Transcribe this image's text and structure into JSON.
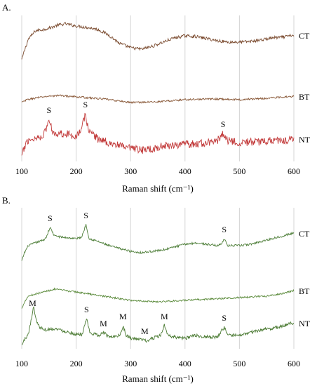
{
  "chart_data": [
    {
      "panel_label": "A.",
      "type": "line",
      "xlabel": "Raman shift (cm⁻¹)",
      "xlim": [
        100,
        600
      ],
      "x_ticks": [
        100,
        200,
        300,
        400,
        500,
        600
      ],
      "grid": "vertical",
      "y_axis": "none (stacked offset spectra)",
      "series": [
        {
          "name": "CT",
          "color": "#7a4a2e",
          "noise": 2.2,
          "points": [
            [
              100,
              -15
            ],
            [
              105,
              -2
            ],
            [
              112,
              14
            ],
            [
              125,
              26
            ],
            [
              140,
              28
            ],
            [
              155,
              31
            ],
            [
              165,
              34
            ],
            [
              180,
              36
            ],
            [
              200,
              33
            ],
            [
              220,
              31
            ],
            [
              240,
              28
            ],
            [
              260,
              20
            ],
            [
              280,
              8
            ],
            [
              300,
              2
            ],
            [
              320,
              0
            ],
            [
              340,
              4
            ],
            [
              360,
              10
            ],
            [
              380,
              16
            ],
            [
              400,
              19
            ],
            [
              420,
              18
            ],
            [
              440,
              15
            ],
            [
              460,
              12
            ],
            [
              480,
              10
            ],
            [
              500,
              10
            ],
            [
              520,
              11
            ],
            [
              540,
              13
            ],
            [
              560,
              16
            ],
            [
              580,
              17
            ],
            [
              600,
              20
            ]
          ]
        },
        {
          "name": "BT",
          "color": "#8a5a3a",
          "noise": 1.3,
          "points": [
            [
              100,
              0
            ],
            [
              110,
              4
            ],
            [
              130,
              7
            ],
            [
              150,
              9
            ],
            [
              170,
              10
            ],
            [
              200,
              8
            ],
            [
              250,
              5
            ],
            [
              300,
              0
            ],
            [
              350,
              1
            ],
            [
              400,
              4
            ],
            [
              450,
              5
            ],
            [
              500,
              4
            ],
            [
              550,
              6
            ],
            [
              600,
              9
            ]
          ]
        },
        {
          "name": "NT",
          "color": "#c23a3a",
          "noise": 5.5,
          "points": [
            [
              100,
              -15
            ],
            [
              105,
              -2
            ],
            [
              110,
              8
            ],
            [
              120,
              10
            ],
            [
              130,
              12
            ],
            [
              140,
              16
            ],
            [
              145,
              24
            ],
            [
              150,
              38
            ],
            [
              155,
              24
            ],
            [
              160,
              18
            ],
            [
              180,
              18
            ],
            [
              200,
              14
            ],
            [
              210,
              24
            ],
            [
              217,
              46
            ],
            [
              222,
              24
            ],
            [
              240,
              10
            ],
            [
              260,
              5
            ],
            [
              280,
              0
            ],
            [
              300,
              -4
            ],
            [
              320,
              -6
            ],
            [
              340,
              -4
            ],
            [
              360,
              0
            ],
            [
              380,
              2
            ],
            [
              400,
              2
            ],
            [
              420,
              3
            ],
            [
              440,
              4
            ],
            [
              460,
              8
            ],
            [
              470,
              18
            ],
            [
              478,
              8
            ],
            [
              500,
              5
            ],
            [
              540,
              6
            ],
            [
              560,
              8
            ],
            [
              580,
              8
            ],
            [
              600,
              10
            ]
          ]
        }
      ],
      "annotations": [
        {
          "text": "S",
          "x": 150,
          "series": "NT"
        },
        {
          "text": "S",
          "x": 217,
          "series": "NT"
        },
        {
          "text": "S",
          "x": 470,
          "series": "NT"
        }
      ]
    },
    {
      "panel_label": "B.",
      "type": "line",
      "xlabel": "Raman shift (cm⁻¹)",
      "xlim": [
        100,
        600
      ],
      "x_ticks": [
        100,
        200,
        300,
        400,
        500,
        600
      ],
      "grid": "vertical",
      "y_axis": "none (stacked offset spectra)",
      "series": [
        {
          "name": "CT",
          "color": "#4f7f3a",
          "noise": 1.5,
          "points": [
            [
              100,
              -14
            ],
            [
              105,
              -2
            ],
            [
              112,
              8
            ],
            [
              125,
              12
            ],
            [
              140,
              16
            ],
            [
              145,
              20
            ],
            [
              152,
              34
            ],
            [
              160,
              22
            ],
            [
              175,
              20
            ],
            [
              200,
              18
            ],
            [
              210,
              20
            ],
            [
              218,
              38
            ],
            [
              224,
              18
            ],
            [
              240,
              14
            ],
            [
              260,
              8
            ],
            [
              280,
              4
            ],
            [
              300,
              0
            ],
            [
              320,
              -2
            ],
            [
              340,
              0
            ],
            [
              360,
              2
            ],
            [
              380,
              6
            ],
            [
              400,
              10
            ],
            [
              420,
              12
            ],
            [
              440,
              10
            ],
            [
              460,
              8
            ],
            [
              466,
              10
            ],
            [
              472,
              18
            ],
            [
              478,
              8
            ],
            [
              500,
              8
            ],
            [
              520,
              10
            ],
            [
              540,
              14
            ],
            [
              560,
              18
            ],
            [
              580,
              22
            ],
            [
              600,
              26
            ]
          ]
        },
        {
          "name": "BT",
          "color": "#5a8a3a",
          "noise": 1.2,
          "points": [
            [
              100,
              -10
            ],
            [
              105,
              0
            ],
            [
              112,
              8
            ],
            [
              120,
              10
            ],
            [
              140,
              14
            ],
            [
              160,
              18
            ],
            [
              180,
              16
            ],
            [
              200,
              14
            ],
            [
              250,
              8
            ],
            [
              300,
              2
            ],
            [
              350,
              0
            ],
            [
              400,
              2
            ],
            [
              450,
              4
            ],
            [
              500,
              6
            ],
            [
              550,
              8
            ],
            [
              580,
              12
            ],
            [
              600,
              16
            ]
          ]
        },
        {
          "name": "NT",
          "color": "#4a7a32",
          "noise": 2.4,
          "points": [
            [
              100,
              -8
            ],
            [
              105,
              0
            ],
            [
              112,
              8
            ],
            [
              118,
              30
            ],
            [
              122,
              48
            ],
            [
              126,
              30
            ],
            [
              132,
              18
            ],
            [
              145,
              14
            ],
            [
              160,
              16
            ],
            [
              180,
              12
            ],
            [
              200,
              8
            ],
            [
              212,
              8
            ],
            [
              219,
              30
            ],
            [
              225,
              10
            ],
            [
              240,
              6
            ],
            [
              250,
              10
            ],
            [
              260,
              4
            ],
            [
              280,
              6
            ],
            [
              286,
              20
            ],
            [
              292,
              6
            ],
            [
              300,
              2
            ],
            [
              320,
              0
            ],
            [
              330,
              -2
            ],
            [
              340,
              2
            ],
            [
              355,
              6
            ],
            [
              362,
              20
            ],
            [
              368,
              6
            ],
            [
              380,
              4
            ],
            [
              400,
              2
            ],
            [
              420,
              6
            ],
            [
              440,
              4
            ],
            [
              460,
              4
            ],
            [
              472,
              18
            ],
            [
              478,
              6
            ],
            [
              500,
              6
            ],
            [
              520,
              10
            ],
            [
              540,
              14
            ],
            [
              560,
              16
            ],
            [
              580,
              20
            ],
            [
              600,
              24
            ]
          ]
        }
      ],
      "annotations": [
        {
          "text": "S",
          "x": 152,
          "series": "CT"
        },
        {
          "text": "S",
          "x": 218,
          "series": "CT"
        },
        {
          "text": "S",
          "x": 472,
          "series": "CT"
        },
        {
          "text": "M",
          "x": 120,
          "series": "NT"
        },
        {
          "text": "S",
          "x": 219,
          "series": "NT"
        },
        {
          "text": "M",
          "x": 250,
          "series": "NT"
        },
        {
          "text": "M",
          "x": 286,
          "series": "NT"
        },
        {
          "text": "M",
          "x": 326,
          "series": "NT"
        },
        {
          "text": "M",
          "x": 362,
          "series": "NT"
        },
        {
          "text": "S",
          "x": 472,
          "series": "NT"
        }
      ]
    }
  ]
}
